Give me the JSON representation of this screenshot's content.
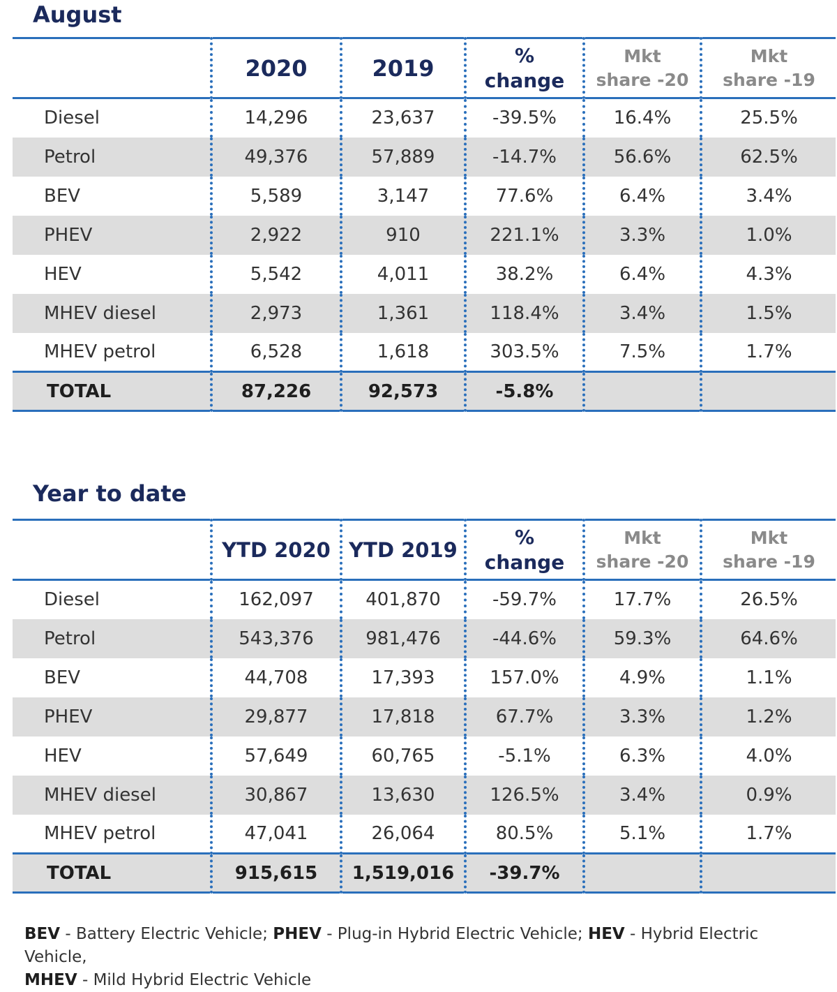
{
  "august": {
    "title": "August",
    "headers": {
      "col1": "2020",
      "col2": "2019",
      "pct_line1": "%",
      "pct_line2": "change",
      "mkt20_line1": "Mkt",
      "mkt20_line2": "share -20",
      "mkt19_line1": "Mkt",
      "mkt19_line2": "share -19"
    },
    "rows": [
      {
        "label": "Diesel",
        "v2020": "14,296",
        "v2019": "23,637",
        "change": "-39.5%",
        "mkt20": "16.4%",
        "mkt19": "25.5%"
      },
      {
        "label": "Petrol",
        "v2020": "49,376",
        "v2019": "57,889",
        "change": "-14.7%",
        "mkt20": "56.6%",
        "mkt19": "62.5%"
      },
      {
        "label": "BEV",
        "v2020": "5,589",
        "v2019": "3,147",
        "change": "77.6%",
        "mkt20": "6.4%",
        "mkt19": "3.4%"
      },
      {
        "label": "PHEV",
        "v2020": "2,922",
        "v2019": "910",
        "change": "221.1%",
        "mkt20": "3.3%",
        "mkt19": "1.0%"
      },
      {
        "label": "HEV",
        "v2020": "5,542",
        "v2019": "4,011",
        "change": "38.2%",
        "mkt20": "6.4%",
        "mkt19": "4.3%"
      },
      {
        "label": "MHEV diesel",
        "v2020": "2,973",
        "v2019": "1,361",
        "change": "118.4%",
        "mkt20": "3.4%",
        "mkt19": "1.5%"
      },
      {
        "label": "MHEV petrol",
        "v2020": "6,528",
        "v2019": "1,618",
        "change": "303.5%",
        "mkt20": "7.5%",
        "mkt19": "1.7%"
      }
    ],
    "total": {
      "label": "TOTAL",
      "v2020": "87,226",
      "v2019": "92,573",
      "change": "-5.8%"
    }
  },
  "ytd": {
    "title": "Year to date",
    "headers": {
      "col1": "YTD 2020",
      "col2": "YTD 2019",
      "pct_line1": "%",
      "pct_line2": "change",
      "mkt20_line1": "Mkt",
      "mkt20_line2": "share -20",
      "mkt19_line1": "Mkt",
      "mkt19_line2": "share -19"
    },
    "rows": [
      {
        "label": "Diesel",
        "v2020": "162,097",
        "v2019": "401,870",
        "change": "-59.7%",
        "mkt20": "17.7%",
        "mkt19": "26.5%"
      },
      {
        "label": "Petrol",
        "v2020": "543,376",
        "v2019": "981,476",
        "change": "-44.6%",
        "mkt20": "59.3%",
        "mkt19": "64.6%"
      },
      {
        "label": "BEV",
        "v2020": "44,708",
        "v2019": "17,393",
        "change": "157.0%",
        "mkt20": "4.9%",
        "mkt19": "1.1%"
      },
      {
        "label": "PHEV",
        "v2020": "29,877",
        "v2019": "17,818",
        "change": "67.7%",
        "mkt20": "3.3%",
        "mkt19": "1.2%"
      },
      {
        "label": "HEV",
        "v2020": "57,649",
        "v2019": "60,765",
        "change": "-5.1%",
        "mkt20": "6.3%",
        "mkt19": "4.0%"
      },
      {
        "label": "MHEV diesel",
        "v2020": "30,867",
        "v2019": "13,630",
        "change": "126.5%",
        "mkt20": "3.4%",
        "mkt19": "0.9%"
      },
      {
        "label": "MHEV petrol",
        "v2020": "47,041",
        "v2019": "26,064",
        "change": "80.5%",
        "mkt20": "5.1%",
        "mkt19": "1.7%"
      }
    ],
    "total": {
      "label": "TOTAL",
      "v2020": "915,615",
      "v2019": "1,519,016",
      "change": "-39.7%"
    }
  },
  "footnote": {
    "bev_abbr": "BEV",
    "bev_text": " - Battery Electric Vehicle; ",
    "phev_abbr": "PHEV",
    "phev_text": " - Plug-in Hybrid Electric Vehicle; ",
    "hev_abbr": "HEV",
    "hev_text": " - Hybrid Electric Vehicle,",
    "mhev_abbr": "MHEV",
    "mhev_text": " - Mild Hybrid Electric Vehicle"
  }
}
